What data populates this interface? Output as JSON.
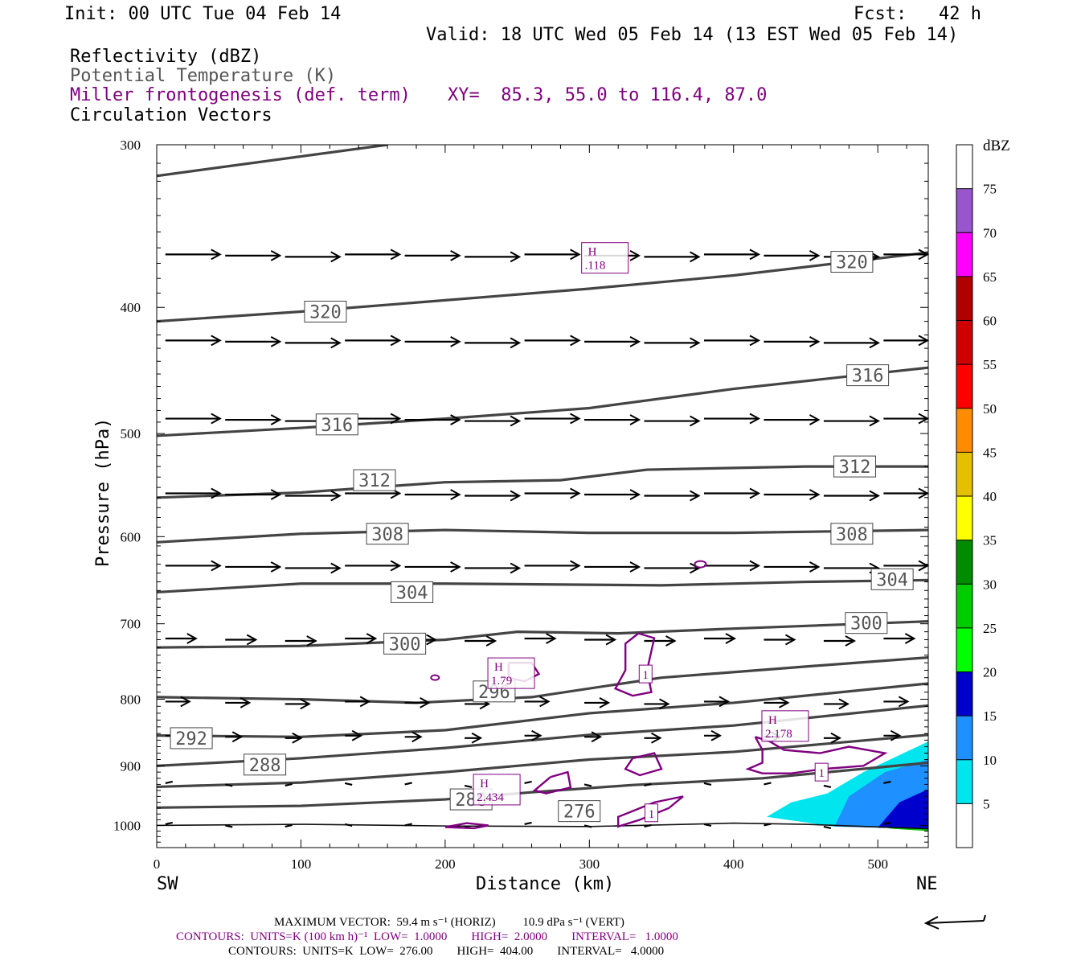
{
  "header": {
    "init": "Init: 00 UTC Tue 04 Feb 14",
    "fcst": "Fcst:   42 h",
    "valid": "Valid: 18 UTC Wed 05 Feb 14 (13 EST Wed 05 Feb 14)"
  },
  "legend": {
    "line1": "Reflectivity (dBZ)",
    "line2": "Potential Temperature (K)",
    "line3": "Miller frontogenesis (def. term)",
    "xy": "XY=  85.3, 55.0 to 116.4, 87.0",
    "line4": "Circulation Vectors"
  },
  "axes": {
    "ylabel": "Pressure (hPa)",
    "xlabel": "Distance (km)",
    "left_end": "SW",
    "right_end": "NE"
  },
  "footer": {
    "max_vector": "MAXIMUM VECTOR:  59.4 m s⁻¹ (HORIZ)         10.9 dPa s⁻¹ (VERT)",
    "contours_purple": "CONTOURS:  UNITS=K (100 km h)⁻¹  LOW=  1.0000        HIGH=  2.0000        INTERVAL=   1.0000",
    "contours_black": "CONTOURS:  UNITS=K  LOW=  276.00        HIGH=  404.00        INTERVAL=   4.0000"
  },
  "colorbar": {
    "unit": "dBZ",
    "labels": [
      "5",
      "10",
      "15",
      "20",
      "25",
      "30",
      "35",
      "40",
      "45",
      "50",
      "55",
      "60",
      "65",
      "70",
      "75"
    ],
    "colors": [
      "#ffffff",
      "#00e5ee",
      "#1e90ff",
      "#0000cd",
      "#00ff00",
      "#00cd00",
      "#008b00",
      "#ffff00",
      "#e5c000",
      "#ff8c00",
      "#ff0000",
      "#d00000",
      "#b00000",
      "#ff00ff",
      "#9955cc",
      "#ffffff"
    ]
  },
  "chart_data": {
    "type": "line",
    "title": "",
    "xlabel": "Distance (km)",
    "ylabel": "Pressure (hPa)",
    "xlim": [
      0,
      535
    ],
    "ylim": [
      1040,
      300
    ],
    "y_scale": "log",
    "x_ticks": [
      0,
      100,
      200,
      300,
      400,
      500
    ],
    "y_ticks": [
      300,
      400,
      500,
      600,
      700,
      800,
      900,
      1000
    ],
    "theta_contour_labels": [
      {
        "text": "320",
        "x": 117,
        "p": 403
      },
      {
        "text": "320",
        "x": 482,
        "p": 369
      },
      {
        "text": "316",
        "x": 125,
        "p": 492
      },
      {
        "text": "316",
        "x": 493,
        "p": 451
      },
      {
        "text": "312",
        "x": 151,
        "p": 543
      },
      {
        "text": "312",
        "x": 484,
        "p": 530
      },
      {
        "text": "308",
        "x": 160,
        "p": 597
      },
      {
        "text": "308",
        "x": 482,
        "p": 597
      },
      {
        "text": "304",
        "x": 177,
        "p": 662
      },
      {
        "text": "304",
        "x": 510,
        "p": 647
      },
      {
        "text": "300",
        "x": 172,
        "p": 725
      },
      {
        "text": "300",
        "x": 492,
        "p": 699
      },
      {
        "text": "296",
        "x": 234,
        "p": 789
      },
      {
        "text": "292",
        "x": 24,
        "p": 857
      },
      {
        "text": "288",
        "x": 75,
        "p": 898
      },
      {
        "text": "280",
        "x": 218,
        "p": 955
      },
      {
        "text": "276",
        "x": 293,
        "p": 975
      }
    ],
    "frontogenesis_labels": [
      {
        "text": "H",
        "value": ".118",
        "x": 308,
        "p": 367
      },
      {
        "text": "H",
        "value": "1.79",
        "x": 243,
        "p": 765
      },
      {
        "text": "H",
        "value": "2.178",
        "x": 433,
        "p": 840
      },
      {
        "text": "H",
        "value": "2.434",
        "x": 233,
        "p": 940
      },
      {
        "text": "1",
        "value": "",
        "x": 339,
        "p": 765
      },
      {
        "text": "1",
        "value": "",
        "x": 461,
        "p": 910
      },
      {
        "text": "1",
        "value": "",
        "x": 343,
        "p": 978
      }
    ],
    "theta_series": [
      {
        "values": [
          [
            0,
            1000
          ],
          [
            100,
            998
          ],
          [
            200,
            1001
          ],
          [
            300,
            1002
          ],
          [
            400,
            996
          ],
          [
            450,
            998
          ],
          [
            535,
            1006
          ]
        ]
      },
      {
        "values": [
          [
            0,
            969
          ],
          [
            100,
            966
          ],
          [
            200,
            955
          ],
          [
            260,
            943
          ],
          [
            330,
            931
          ],
          [
            420,
            920
          ],
          [
            535,
            895
          ]
        ]
      },
      {
        "values": [
          [
            0,
            934
          ],
          [
            100,
            927
          ],
          [
            200,
            910
          ],
          [
            300,
            890
          ],
          [
            400,
            878
          ],
          [
            535,
            852
          ]
        ]
      },
      {
        "values": [
          [
            0,
            900
          ],
          [
            100,
            888
          ],
          [
            200,
            872
          ],
          [
            300,
            852
          ],
          [
            400,
            838
          ],
          [
            535,
            809
          ]
        ]
      },
      {
        "values": [
          [
            0,
            853
          ],
          [
            100,
            855
          ],
          [
            200,
            845
          ],
          [
            300,
            820
          ],
          [
            400,
            805
          ],
          [
            535,
            778
          ]
        ]
      },
      {
        "values": [
          [
            0,
            797
          ],
          [
            100,
            800
          ],
          [
            180,
            805
          ],
          [
            260,
            797
          ],
          [
            350,
            770
          ],
          [
            450,
            755
          ],
          [
            535,
            743
          ]
        ]
      },
      {
        "values": [
          [
            0,
            730
          ],
          [
            100,
            728
          ],
          [
            200,
            720
          ],
          [
            250,
            710
          ],
          [
            320,
            712
          ],
          [
            400,
            706
          ],
          [
            535,
            697
          ]
        ]
      },
      {
        "values": [
          [
            0,
            662
          ],
          [
            100,
            652
          ],
          [
            200,
            652
          ],
          [
            350,
            654
          ],
          [
            450,
            650
          ],
          [
            535,
            648
          ]
        ]
      },
      {
        "values": [
          [
            0,
            606
          ],
          [
            100,
            597
          ],
          [
            200,
            593
          ],
          [
            300,
            596
          ],
          [
            400,
            596
          ],
          [
            535,
            593
          ]
        ]
      },
      {
        "values": [
          [
            0,
            560
          ],
          [
            100,
            555
          ],
          [
            200,
            545
          ],
          [
            280,
            543
          ],
          [
            340,
            533
          ],
          [
            450,
            530
          ],
          [
            535,
            530
          ]
        ]
      },
      {
        "values": [
          [
            0,
            502
          ],
          [
            100,
            495
          ],
          [
            200,
            487
          ],
          [
            300,
            478
          ],
          [
            400,
            462
          ],
          [
            535,
            445
          ]
        ]
      },
      {
        "values": [
          [
            0,
            410
          ],
          [
            100,
            403
          ],
          [
            200,
            395
          ],
          [
            300,
            387
          ],
          [
            400,
            378
          ],
          [
            535,
            363
          ]
        ]
      },
      {
        "values": [
          [
            0,
            317
          ],
          [
            160,
            300
          ]
        ]
      }
    ],
    "reflectivity_regions_dbz": [
      {
        "band": "5-10",
        "polygon": [
          [
            423,
            985
          ],
          [
            440,
            960
          ],
          [
            465,
            945
          ],
          [
            490,
            910
          ],
          [
            535,
            862
          ],
          [
            535,
            1006
          ],
          [
            470,
            1002
          ]
        ]
      },
      {
        "band": "10-15",
        "polygon": [
          [
            470,
            1002
          ],
          [
            480,
            950
          ],
          [
            505,
            910
          ],
          [
            535,
            890
          ],
          [
            535,
            1006
          ]
        ]
      },
      {
        "band": "15-20",
        "polygon": [
          [
            500,
            1004
          ],
          [
            515,
            960
          ],
          [
            535,
            938
          ],
          [
            535,
            1006
          ]
        ]
      },
      {
        "band": "20-25",
        "polygon": [
          [
            505,
            1004
          ],
          [
            535,
            1006
          ],
          [
            535,
            1010
          ],
          [
            510,
            1006
          ]
        ]
      }
    ],
    "vector_rows_hpa": [
      365,
      425,
      488,
      557,
      633,
      720,
      805,
      855,
      930,
      1000
    ]
  }
}
